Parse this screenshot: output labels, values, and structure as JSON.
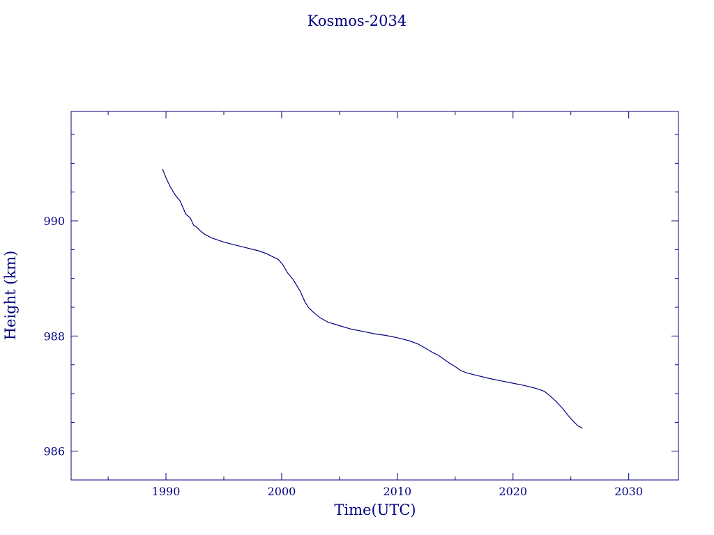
{
  "colors": {
    "ink": "#000080",
    "background": "#ffffff"
  },
  "chart_data": {
    "type": "line",
    "title": "Kosmos-2034",
    "xlabel": "Time(UTC)",
    "ylabel": "Height (km)",
    "xlim": [
      1981.8,
      2034.3
    ],
    "ylim": [
      985.5,
      991.9
    ],
    "x_ticks": [
      1990,
      2000,
      2010,
      2020,
      2030
    ],
    "y_ticks": [
      986,
      988,
      990
    ],
    "x_minor_step": 5,
    "y_minor_step": 0.5,
    "grid": false,
    "legend": "none",
    "series": [
      {
        "color": "#000080",
        "x": [
          1989.7,
          1990.0,
          1990.4,
          1990.8,
          1991.2,
          1991.5,
          1991.7,
          1992.1,
          1992.4,
          1992.6,
          1993.0,
          1993.4,
          1994.0,
          1995.0,
          1996.0,
          1997.0,
          1998.0,
          1998.7,
          1999.2,
          1999.7,
          2000.1,
          2000.5,
          2001.0,
          2001.6,
          2002.0,
          2002.3,
          2002.7,
          2003.3,
          2004.0,
          2005.0,
          2006.0,
          2007.0,
          2008.0,
          2009.0,
          2010.0,
          2011.0,
          2011.8,
          2012.5,
          2013.0,
          2013.6,
          2014.0,
          2014.5,
          2015.0,
          2015.5,
          2016.0,
          2017.0,
          2018.0,
          2019.0,
          2020.0,
          2021.0,
          2022.0,
          2022.7,
          2023.2,
          2023.7,
          2024.3,
          2024.8,
          2025.3,
          2025.6,
          2026.0
        ],
        "y": [
          990.9,
          990.75,
          990.58,
          990.45,
          990.35,
          990.22,
          990.12,
          990.05,
          989.92,
          989.9,
          989.82,
          989.76,
          989.7,
          989.63,
          989.58,
          989.53,
          989.48,
          989.43,
          989.38,
          989.33,
          989.24,
          989.1,
          988.98,
          988.78,
          988.6,
          988.5,
          988.42,
          988.32,
          988.24,
          988.18,
          988.12,
          988.08,
          988.04,
          988.01,
          987.97,
          987.92,
          987.86,
          987.78,
          987.72,
          987.66,
          987.6,
          987.53,
          987.47,
          987.4,
          987.36,
          987.31,
          987.26,
          987.22,
          987.18,
          987.14,
          987.09,
          987.04,
          986.96,
          986.87,
          986.74,
          986.61,
          986.5,
          986.44,
          986.4
        ]
      }
    ]
  }
}
